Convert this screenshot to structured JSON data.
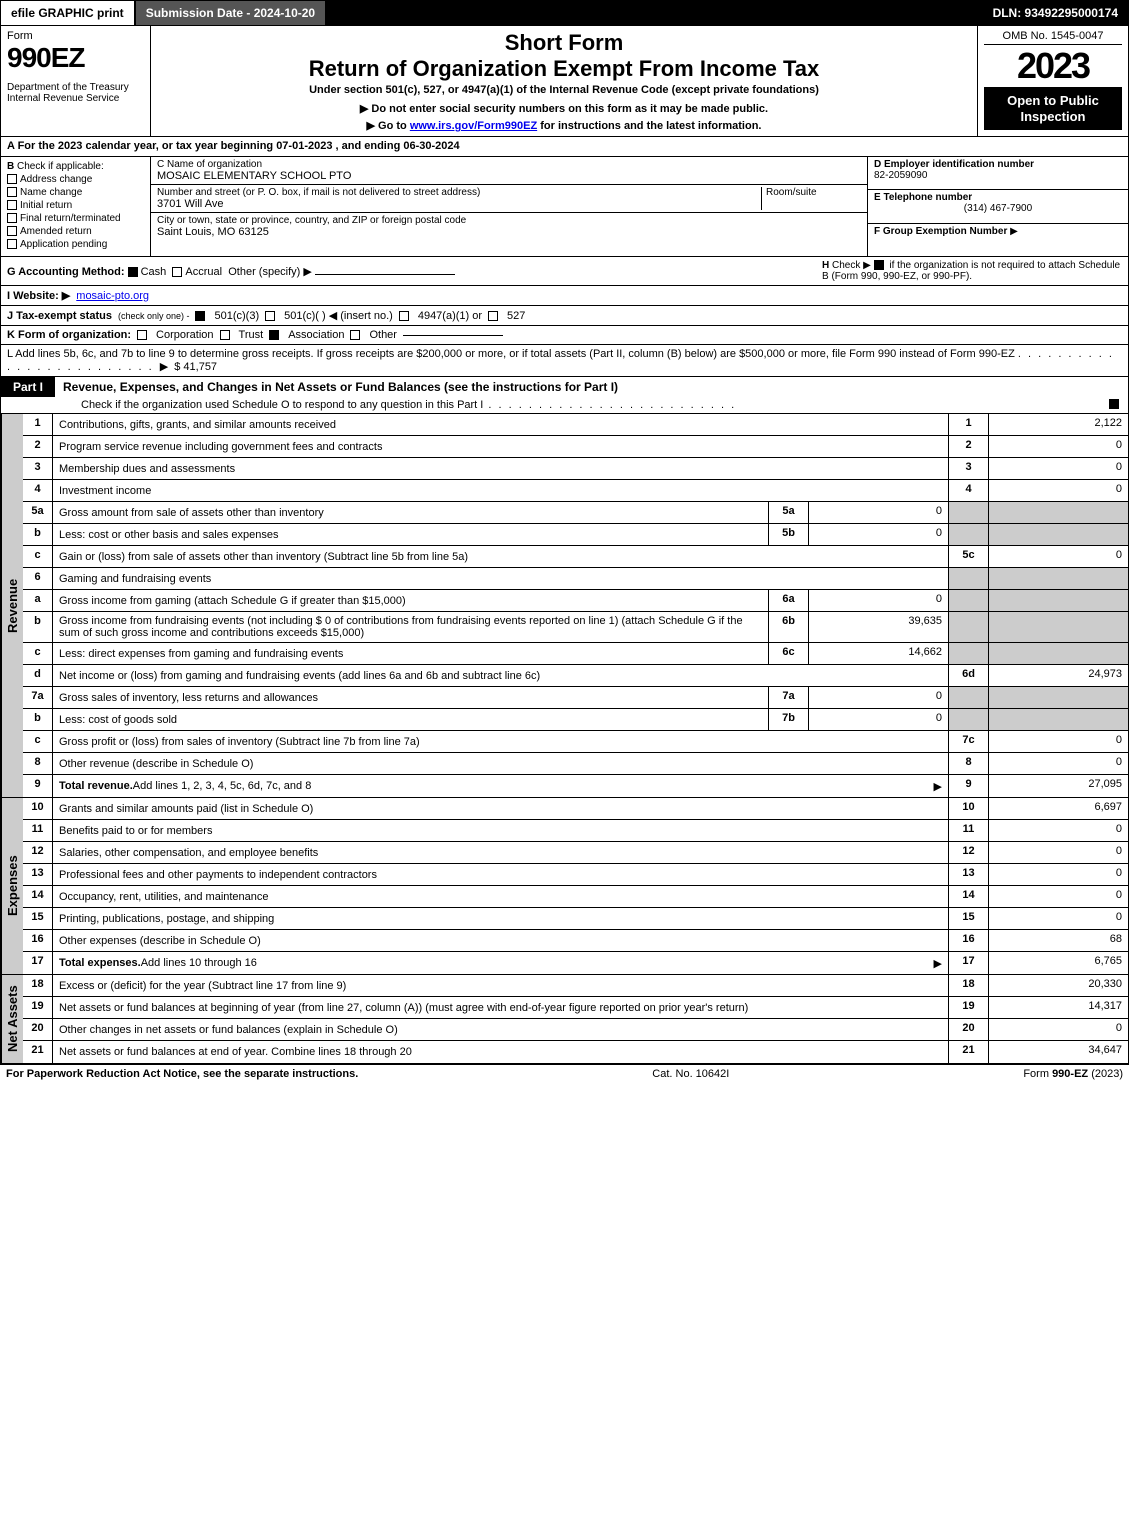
{
  "topbar": {
    "efile": "efile GRAPHIC print",
    "submission": "Submission Date - 2024-10-20",
    "dln": "DLN: 93492295000174"
  },
  "header": {
    "form_label": "Form",
    "form_num": "990EZ",
    "dept1": "Department of the Treasury",
    "dept2": "Internal Revenue Service",
    "short": "Short Form",
    "return": "Return of Organization Exempt From Income Tax",
    "under": "Under section 501(c), 527, or 4947(a)(1) of the Internal Revenue Code (except private foundations)",
    "donot": "▶ Do not enter social security numbers on this form as it may be made public.",
    "goto_pre": "▶ Go to ",
    "goto_link": "www.irs.gov/Form990EZ",
    "goto_post": " for instructions and the latest information.",
    "omb": "OMB No. 1545-0047",
    "year": "2023",
    "open": "Open to Public Inspection"
  },
  "row_a": "A  For the 2023 calendar year, or tax year beginning 07-01-2023 , and ending 06-30-2024",
  "section_b": {
    "label": "B",
    "check_label": "Check if applicable:",
    "address": "Address change",
    "name": "Name change",
    "initial": "Initial return",
    "final": "Final return/terminated",
    "amended": "Amended return",
    "pending": "Application pending"
  },
  "section_c": {
    "name_label": "C Name of organization",
    "name": "MOSAIC ELEMENTARY SCHOOL PTO",
    "street_label": "Number and street (or P. O. box, if mail is not delivered to street address)",
    "street": "3701 Will Ave",
    "room_label": "Room/suite",
    "city_label": "City or town, state or province, country, and ZIP or foreign postal code",
    "city": "Saint Louis, MO  63125"
  },
  "section_d": {
    "d_label": "D Employer identification number",
    "ein": "82-2059090",
    "e_label": "E Telephone number",
    "phone": "(314) 467-7900",
    "f_label": "F Group Exemption Number",
    "f_arrow": "▶"
  },
  "row_g": {
    "g_label": "G Accounting Method:",
    "cash": "Cash",
    "accrual": "Accrual",
    "other": "Other (specify) ▶",
    "h_label": "H",
    "h_text": "Check ▶",
    "h_desc": "if the organization is not required to attach Schedule B (Form 990, 990-EZ, or 990-PF)."
  },
  "row_i": {
    "i_label": "I Website: ▶",
    "website": "mosaic-pto.org"
  },
  "row_j": {
    "j_label": "J Tax-exempt status",
    "j_sub": "(check only one) -",
    "j1": "501(c)(3)",
    "j2": "501(c)(  ) ◀ (insert no.)",
    "j3": "4947(a)(1) or",
    "j4": "527"
  },
  "row_k": {
    "k_label": "K Form of organization:",
    "corp": "Corporation",
    "trust": "Trust",
    "assoc": "Association",
    "other": "Other"
  },
  "row_l": {
    "l_text": "L Add lines 5b, 6c, and 7b to line 9 to determine gross receipts. If gross receipts are $200,000 or more, or if total assets (Part II, column (B) below) are $500,000 or more, file Form 990 instead of Form 990-EZ",
    "l_amount": "$ 41,757"
  },
  "part1": {
    "tag": "Part I",
    "title": "Revenue, Expenses, and Changes in Net Assets or Fund Balances (see the instructions for Part I)",
    "subtitle": "Check if the organization used Schedule O to respond to any question in this Part I"
  },
  "section_labels": {
    "revenue": "Revenue",
    "expenses": "Expenses",
    "netassets": "Net Assets"
  },
  "revenue_lines": [
    {
      "num": "1",
      "desc": "Contributions, gifts, grants, and similar amounts received",
      "box": "1",
      "val": "2,122"
    },
    {
      "num": "2",
      "desc": "Program service revenue including government fees and contracts",
      "box": "2",
      "val": "0"
    },
    {
      "num": "3",
      "desc": "Membership dues and assessments",
      "box": "3",
      "val": "0"
    },
    {
      "num": "4",
      "desc": "Investment income",
      "box": "4",
      "val": "0"
    },
    {
      "num": "5a",
      "desc": "Gross amount from sale of assets other than inventory",
      "sub": "5a",
      "subval": "0",
      "box": "",
      "val": "",
      "shade": true
    },
    {
      "num": "b",
      "desc": "Less: cost or other basis and sales expenses",
      "sub": "5b",
      "subval": "0",
      "box": "",
      "val": "",
      "shade": true
    },
    {
      "num": "c",
      "desc": "Gain or (loss) from sale of assets other than inventory (Subtract line 5b from line 5a)",
      "box": "5c",
      "val": "0"
    },
    {
      "num": "6",
      "desc": "Gaming and fundraising events",
      "box": "",
      "val": "",
      "shade": true
    },
    {
      "num": "a",
      "desc": "Gross income from gaming (attach Schedule G if greater than $15,000)",
      "sub": "6a",
      "subval": "0",
      "box": "",
      "val": "",
      "shade": true
    },
    {
      "num": "b",
      "desc": "Gross income from fundraising events (not including $ 0 of contributions from fundraising events reported on line 1) (attach Schedule G if the sum of such gross income and contributions exceeds $15,000)",
      "sub": "6b",
      "subval": "39,635",
      "box": "",
      "val": "",
      "shade": true
    },
    {
      "num": "c",
      "desc": "Less: direct expenses from gaming and fundraising events",
      "sub": "6c",
      "subval": "14,662",
      "box": "",
      "val": "",
      "shade": true
    },
    {
      "num": "d",
      "desc": "Net income or (loss) from gaming and fundraising events (add lines 6a and 6b and subtract line 6c)",
      "box": "6d",
      "val": "24,973"
    },
    {
      "num": "7a",
      "desc": "Gross sales of inventory, less returns and allowances",
      "sub": "7a",
      "subval": "0",
      "box": "",
      "val": "",
      "shade": true
    },
    {
      "num": "b",
      "desc": "Less: cost of goods sold",
      "sub": "7b",
      "subval": "0",
      "box": "",
      "val": "",
      "shade": true
    },
    {
      "num": "c",
      "desc": "Gross profit or (loss) from sales of inventory (Subtract line 7b from line 7a)",
      "box": "7c",
      "val": "0"
    },
    {
      "num": "8",
      "desc": "Other revenue (describe in Schedule O)",
      "box": "8",
      "val": "0"
    },
    {
      "num": "9",
      "desc": "Total revenue. Add lines 1, 2, 3, 4, 5c, 6d, 7c, and 8",
      "box": "9",
      "val": "27,095",
      "bold": true,
      "arrow": true
    }
  ],
  "expense_lines": [
    {
      "num": "10",
      "desc": "Grants and similar amounts paid (list in Schedule O)",
      "box": "10",
      "val": "6,697"
    },
    {
      "num": "11",
      "desc": "Benefits paid to or for members",
      "box": "11",
      "val": "0"
    },
    {
      "num": "12",
      "desc": "Salaries, other compensation, and employee benefits",
      "box": "12",
      "val": "0"
    },
    {
      "num": "13",
      "desc": "Professional fees and other payments to independent contractors",
      "box": "13",
      "val": "0"
    },
    {
      "num": "14",
      "desc": "Occupancy, rent, utilities, and maintenance",
      "box": "14",
      "val": "0"
    },
    {
      "num": "15",
      "desc": "Printing, publications, postage, and shipping",
      "box": "15",
      "val": "0"
    },
    {
      "num": "16",
      "desc": "Other expenses (describe in Schedule O)",
      "box": "16",
      "val": "68"
    },
    {
      "num": "17",
      "desc": "Total expenses. Add lines 10 through 16",
      "box": "17",
      "val": "6,765",
      "bold": true,
      "arrow": true
    }
  ],
  "netasset_lines": [
    {
      "num": "18",
      "desc": "Excess or (deficit) for the year (Subtract line 17 from line 9)",
      "box": "18",
      "val": "20,330"
    },
    {
      "num": "19",
      "desc": "Net assets or fund balances at beginning of year (from line 27, column (A)) (must agree with end-of-year figure reported on prior year's return)",
      "box": "19",
      "val": "14,317"
    },
    {
      "num": "20",
      "desc": "Other changes in net assets or fund balances (explain in Schedule O)",
      "box": "20",
      "val": "0"
    },
    {
      "num": "21",
      "desc": "Net assets or fund balances at end of year. Combine lines 18 through 20",
      "box": "21",
      "val": "34,647"
    }
  ],
  "footer": {
    "paperwork": "For Paperwork Reduction Act Notice, see the separate instructions.",
    "catno": "Cat. No. 10642I",
    "formver": "Form 990-EZ (2023)"
  },
  "colors": {
    "black": "#000000",
    "white": "#ffffff",
    "shade": "#cccccc",
    "dark_btn": "#555555",
    "link": "#0000ee"
  }
}
